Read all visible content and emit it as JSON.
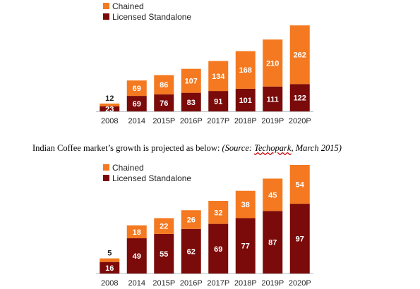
{
  "caption": {
    "text": "Indian Coffee market’s growth is projected as below: ",
    "source_prefix": "(Source: ",
    "source_name": "Techopark",
    "source_suffix": ", March 2015)"
  },
  "colors": {
    "standalone": "#7b0a0a",
    "chained": "#f47920"
  },
  "chart_data": [
    {
      "type": "bar",
      "stacked": true,
      "title": "",
      "xlabel": "",
      "ylabel": "",
      "legend_position": "top-left",
      "categories": [
        "2008",
        "2014",
        "2015P",
        "2016P",
        "2017P",
        "2018P",
        "2019P",
        "2020P"
      ],
      "series": [
        {
          "name": "Licensed Standalone",
          "values": [
            23,
            69,
            76,
            83,
            91,
            101,
            111,
            122
          ]
        },
        {
          "name": "Chained",
          "values": [
            12,
            69,
            86,
            107,
            134,
            168,
            210,
            262
          ]
        }
      ]
    },
    {
      "type": "bar",
      "stacked": true,
      "title": "",
      "xlabel": "",
      "ylabel": "",
      "legend_position": "top-left",
      "categories": [
        "2008",
        "2014",
        "2015P",
        "2016P",
        "2017P",
        "2018P",
        "2019P",
        "2020P"
      ],
      "series": [
        {
          "name": "Licensed Standalone",
          "values": [
            16,
            49,
            55,
            62,
            69,
            77,
            87,
            97
          ]
        },
        {
          "name": "Chained",
          "values": [
            5,
            18,
            22,
            26,
            32,
            38,
            45,
            54
          ]
        }
      ]
    }
  ]
}
